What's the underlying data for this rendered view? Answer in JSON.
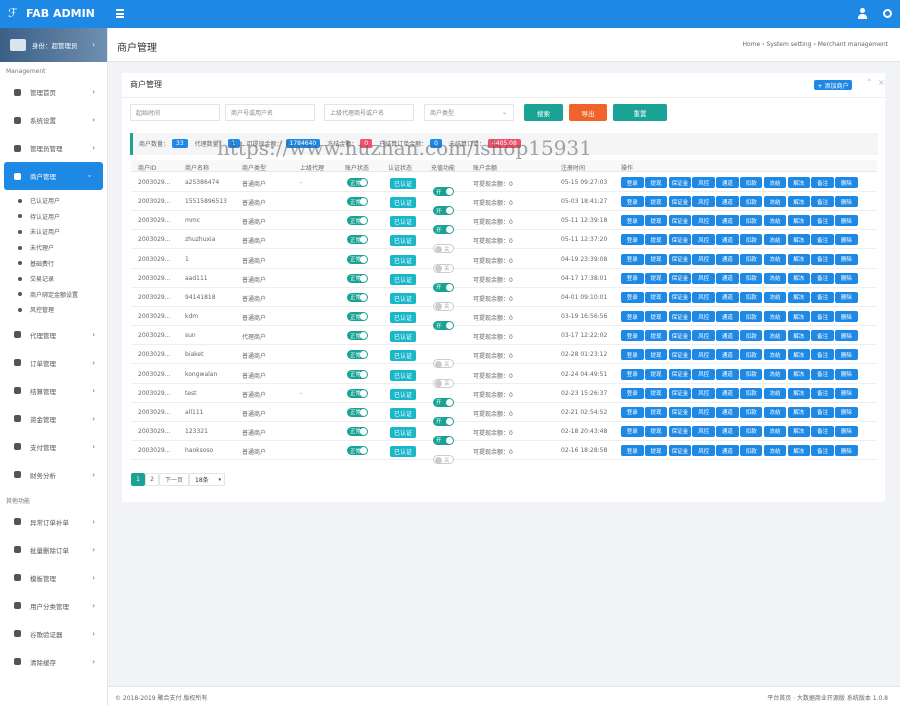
{
  "topbar": {
    "brand": "FAB ADMIN"
  },
  "sidebar": {
    "role": "身份：超管理员",
    "groups": [
      {
        "title": "Management",
        "items": [
          {
            "label": "管理首页"
          },
          {
            "label": "系统设置"
          },
          {
            "label": "管理员管理"
          },
          {
            "label": "商户管理",
            "active": true,
            "children": [
              "已认证用户",
              "待认证用户",
              "未认证用户",
              "未代理户",
              "基础费行",
              "交易记录",
              "商户绑定金额设置",
              "风控管理"
            ]
          },
          {
            "label": "代理管理"
          },
          {
            "label": "订单管理"
          },
          {
            "label": "结算管理"
          },
          {
            "label": "资金管理"
          },
          {
            "label": "支付管理"
          },
          {
            "label": "财务分析"
          }
        ]
      },
      {
        "title": "其他功能",
        "items": [
          {
            "label": "异常订单补单"
          },
          {
            "label": "批量删除订单"
          },
          {
            "label": "模板管理"
          },
          {
            "label": "用户分类管理"
          },
          {
            "label": "谷歌验证器"
          },
          {
            "label": "清除缓存"
          }
        ]
      }
    ]
  },
  "header": {
    "title": "商户管理",
    "breadcrumb": "Home › System setting › Merchant management"
  },
  "card": {
    "title": "商户管理",
    "add_button": "+ 添加商户",
    "filters": {
      "inputs": [
        "起始时间",
        "商户号或用户名",
        "上级代理商号或户名"
      ],
      "select": "商户类型",
      "buttons": [
        {
          "label": "搜索",
          "color": "#1aa394"
        },
        {
          "label": "导出",
          "color": "#f0632b"
        },
        {
          "label": "重置",
          "color": "#1aa394"
        }
      ]
    },
    "stats": [
      {
        "label": "商户数量：",
        "value": "33",
        "color": "#1e88e5"
      },
      {
        "label": "代理数量：",
        "value": "1",
        "color": "#1e88e5"
      },
      {
        "label": "可提现金额：",
        "value": "1784640",
        "color": "#1e88e5"
      },
      {
        "label": "冻结金额：",
        "value": "0",
        "color": "#f0506e"
      },
      {
        "label": "已结算订单金额：",
        "value": "0",
        "color": "#1e88e5"
      },
      {
        "label": "未结算订单：",
        "value": "4405.08",
        "color": "#f0506e"
      }
    ],
    "watermark": "https://www.huzhan.com/ishop15931",
    "table": {
      "columns": [
        "商户ID",
        "商户名称",
        "商户类型",
        "上级代理",
        "账户状态",
        "认证状态",
        "充值功能",
        "账户余额",
        "注册时间",
        "操作"
      ],
      "operations": [
        "登录",
        "提现",
        "保证金",
        "风控",
        "通道",
        "扣款",
        "冻结",
        "解冻",
        "备注",
        "删除"
      ],
      "rows": [
        [
          "2003029...",
          "a25386474",
          "普通商户",
          "-",
          "正常",
          "已认证",
          "开",
          "可提现余额：0",
          "05-15 09:27:03"
        ],
        [
          "2003029...",
          "15515896513",
          "普通商户",
          "",
          "正常",
          "已认证",
          "开",
          "可提现余额：0",
          "05-03 18:41:27"
        ],
        [
          "2003029...",
          "mmc",
          "普通商户",
          "",
          "正常",
          "已认证",
          "开",
          "可提现余额：0",
          "05-11 12:39:18"
        ],
        [
          "2003029...",
          "zhuzhuxia",
          "普通商户",
          "",
          "正常",
          "已认证",
          "关",
          "可提现余额：0",
          "05-11 12:37:20"
        ],
        [
          "2003029...",
          "1",
          "普通商户",
          "",
          "正常",
          "已认证",
          "关",
          "可提现余额：0",
          "04-19 23:39:08"
        ],
        [
          "2003029...",
          "aad111",
          "普通商户",
          "",
          "正常",
          "已认证",
          "开",
          "可提现余额：0",
          "04-17 17:38:01"
        ],
        [
          "2003029...",
          "94141818",
          "普通商户",
          "",
          "正常",
          "已认证",
          "关",
          "可提现余额：0",
          "04-01 09:10:01"
        ],
        [
          "2003029...",
          "kdm",
          "普通商户",
          "",
          "正常",
          "已认证",
          "开",
          "可提现余额：0",
          "03-19 16:56:56"
        ],
        [
          "2003029...",
          "sun",
          "代理商户",
          "",
          "正常",
          "已认证",
          null,
          "可提现余额：0",
          "03-17 12:22:02"
        ],
        [
          "2003029...",
          "biaket",
          "普通商户",
          "",
          "正常",
          "已认证",
          "关",
          "可提现余额：0",
          "02-28 01:23:12"
        ],
        [
          "2003029...",
          "kongwalan",
          "普通商户",
          "",
          "正常",
          "已认证",
          "关",
          "可提现余额：0",
          "02-24 04:49:51"
        ],
        [
          "2003029...",
          "test",
          "普通商户",
          "-",
          "正常",
          "已认证",
          "开",
          "可提现余额：0",
          "02-23 15:26:37"
        ],
        [
          "2003029...",
          "all111",
          "普通商户",
          "",
          "正常",
          "已认证",
          "开",
          "可提现余额：0",
          "02-21 02:54:52"
        ],
        [
          "2003029...",
          "123321",
          "普通商户",
          "",
          "正常",
          "已认证",
          "开",
          "可提现余额：0",
          "02-18 20:43:48"
        ],
        [
          "2003029...",
          "haoksoso",
          "普通商户",
          "",
          "正常",
          "已认证",
          "关",
          "可提现余额：0",
          "02-16 18:28:58"
        ]
      ]
    },
    "pagination": {
      "pages": [
        "1",
        "2"
      ],
      "next": "下一页",
      "size": "18条"
    }
  },
  "footer": {
    "copyright": "© 2018-2019 聚合支付 版权所有",
    "links": "平台首页 · 大数据商业开源版 系统版本 1.0.8"
  }
}
